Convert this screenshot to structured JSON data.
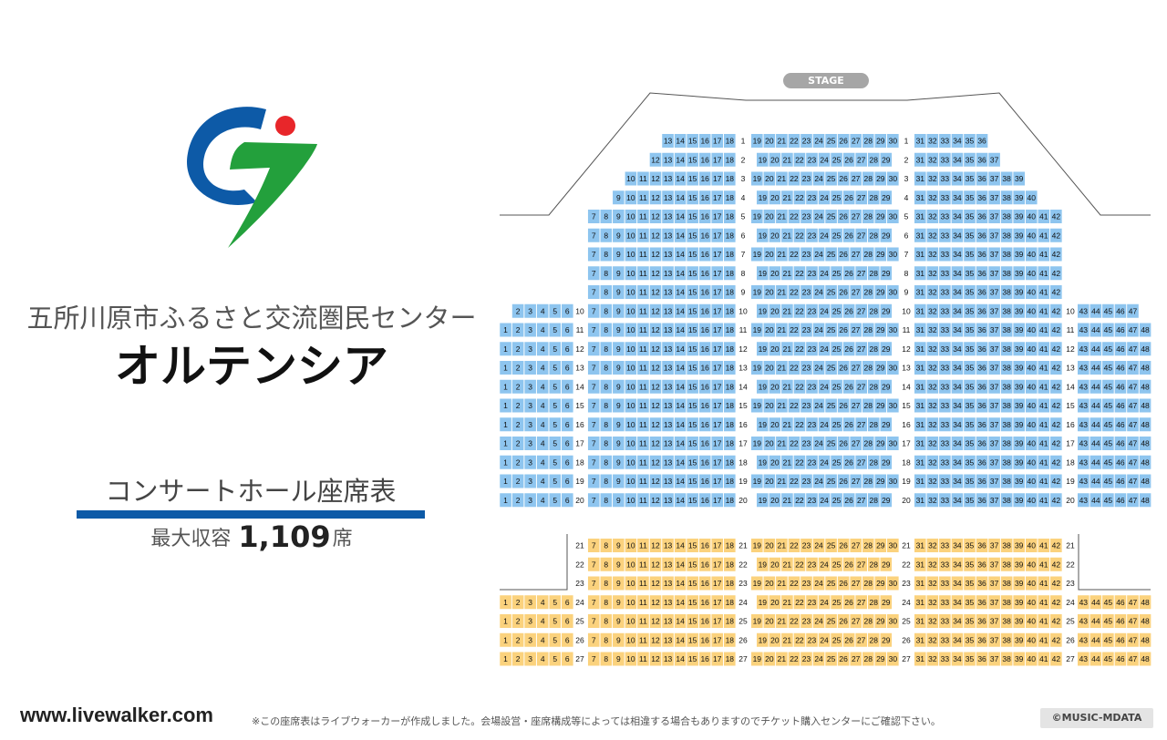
{
  "venue": {
    "name_sub": "五所川原市ふるさと交流圏民センター",
    "name_main": "オルテンシア",
    "chart_heading": "コンサートホール座席表",
    "capacity_label": "最大収容",
    "capacity_value": "1,109",
    "capacity_unit": "席"
  },
  "stage_label": "STAGE",
  "footer": {
    "url": "www.livewalker.com",
    "note": "※この座席表はライブウォーカーが作成しました。会場設営・座席構成等によっては相違する場合もありますのでチケット購入センターにご確認下さい。",
    "copyright": "©MUSIC-MDATA"
  },
  "colors": {
    "seat_blue": "#8ec5ef",
    "seat_orange": "#fbd27d",
    "brand_blue": "#0d5aa7",
    "logo_green": "#23a03c",
    "logo_red": "#e8262a",
    "stage_gray": "#a6a6a6"
  },
  "floor_1": {
    "seat_color": "blue",
    "rows": [
      {
        "row": 1,
        "left": null,
        "center_left": [
          13,
          18
        ],
        "center": [
          19,
          30
        ],
        "center_right": [
          31,
          36
        ],
        "right": null
      },
      {
        "row": 2,
        "left": null,
        "center_left": [
          12,
          18
        ],
        "center": [
          19,
          29
        ],
        "center_right": [
          31,
          37
        ],
        "right": null
      },
      {
        "row": 3,
        "left": null,
        "center_left": [
          10,
          18
        ],
        "center": [
          19,
          30
        ],
        "center_right": [
          31,
          39
        ],
        "right": null
      },
      {
        "row": 4,
        "left": null,
        "center_left": [
          9,
          18
        ],
        "center": [
          19,
          29
        ],
        "center_right": [
          31,
          40
        ],
        "right": null
      },
      {
        "row": 5,
        "left": null,
        "center_left": [
          7,
          18
        ],
        "center": [
          19,
          30
        ],
        "center_right": [
          31,
          42
        ],
        "right": null
      },
      {
        "row": 6,
        "left": null,
        "center_left": [
          7,
          18
        ],
        "center": [
          19,
          29
        ],
        "center_right": [
          31,
          42
        ],
        "right": null
      },
      {
        "row": 7,
        "left": null,
        "center_left": [
          7,
          18
        ],
        "center": [
          19,
          30
        ],
        "center_right": [
          31,
          42
        ],
        "right": null
      },
      {
        "row": 8,
        "left": null,
        "center_left": [
          7,
          18
        ],
        "center": [
          19,
          29
        ],
        "center_right": [
          31,
          42
        ],
        "right": null
      },
      {
        "row": 9,
        "left": null,
        "center_left": [
          7,
          18
        ],
        "center": [
          19,
          30
        ],
        "center_right": [
          31,
          42
        ],
        "right": null
      },
      {
        "row": 10,
        "left": [
          2,
          6
        ],
        "center_left": [
          7,
          18
        ],
        "center": [
          19,
          29
        ],
        "center_right": [
          31,
          42
        ],
        "right": [
          43,
          47
        ]
      },
      {
        "row": 11,
        "left": [
          1,
          6
        ],
        "center_left": [
          7,
          18
        ],
        "center": [
          19,
          30
        ],
        "center_right": [
          31,
          42
        ],
        "right": [
          43,
          48
        ]
      },
      {
        "row": 12,
        "left": [
          1,
          6
        ],
        "center_left": [
          7,
          18
        ],
        "center": [
          19,
          29
        ],
        "center_right": [
          31,
          42
        ],
        "right": [
          43,
          48
        ]
      },
      {
        "row": 13,
        "left": [
          1,
          6
        ],
        "center_left": [
          7,
          18
        ],
        "center": [
          19,
          30
        ],
        "center_right": [
          31,
          42
        ],
        "right": [
          43,
          48
        ]
      },
      {
        "row": 14,
        "left": [
          1,
          6
        ],
        "center_left": [
          7,
          18
        ],
        "center": [
          19,
          29
        ],
        "center_right": [
          31,
          42
        ],
        "right": [
          43,
          48
        ]
      },
      {
        "row": 15,
        "left": [
          1,
          6
        ],
        "center_left": [
          7,
          18
        ],
        "center": [
          19,
          30
        ],
        "center_right": [
          31,
          42
        ],
        "right": [
          43,
          48
        ]
      },
      {
        "row": 16,
        "left": [
          1,
          6
        ],
        "center_left": [
          7,
          18
        ],
        "center": [
          19,
          29
        ],
        "center_right": [
          31,
          42
        ],
        "right": [
          43,
          48
        ]
      },
      {
        "row": 17,
        "left": [
          1,
          6
        ],
        "center_left": [
          7,
          18
        ],
        "center": [
          19,
          30
        ],
        "center_right": [
          31,
          42
        ],
        "right": [
          43,
          48
        ]
      },
      {
        "row": 18,
        "left": [
          1,
          6
        ],
        "center_left": [
          7,
          18
        ],
        "center": [
          19,
          29
        ],
        "center_right": [
          31,
          42
        ],
        "right": [
          43,
          48
        ]
      },
      {
        "row": 19,
        "left": [
          1,
          6
        ],
        "center_left": [
          7,
          18
        ],
        "center": [
          19,
          30
        ],
        "center_right": [
          31,
          42
        ],
        "right": [
          43,
          48
        ]
      },
      {
        "row": 20,
        "left": [
          1,
          6
        ],
        "center_left": [
          7,
          18
        ],
        "center": [
          19,
          29
        ],
        "center_right": [
          31,
          42
        ],
        "right": [
          43,
          48
        ]
      }
    ]
  },
  "floor_2": {
    "seat_color": "orange",
    "rows": [
      {
        "row": 21,
        "left": null,
        "center_left": [
          7,
          18
        ],
        "center": [
          19,
          30
        ],
        "center_right": [
          31,
          42
        ],
        "right": null
      },
      {
        "row": 22,
        "left": null,
        "center_left": [
          7,
          18
        ],
        "center": [
          19,
          29
        ],
        "center_right": [
          31,
          42
        ],
        "right": null
      },
      {
        "row": 23,
        "left": null,
        "center_left": [
          7,
          18
        ],
        "center": [
          19,
          30
        ],
        "center_right": [
          31,
          42
        ],
        "right": null
      },
      {
        "row": 24,
        "left": [
          1,
          6
        ],
        "center_left": [
          7,
          18
        ],
        "center": [
          19,
          29
        ],
        "center_right": [
          31,
          42
        ],
        "right": [
          43,
          48
        ]
      },
      {
        "row": 25,
        "left": [
          1,
          6
        ],
        "center_left": [
          7,
          18
        ],
        "center": [
          19,
          30
        ],
        "center_right": [
          31,
          42
        ],
        "right": [
          43,
          48
        ]
      },
      {
        "row": 26,
        "left": [
          1,
          6
        ],
        "center_left": [
          7,
          18
        ],
        "center": [
          19,
          29
        ],
        "center_right": [
          31,
          42
        ],
        "right": [
          43,
          48
        ]
      },
      {
        "row": 27,
        "left": [
          1,
          6
        ],
        "center_left": [
          7,
          18
        ],
        "center": [
          19,
          30
        ],
        "center_right": [
          31,
          42
        ],
        "right": [
          43,
          48
        ]
      }
    ]
  }
}
